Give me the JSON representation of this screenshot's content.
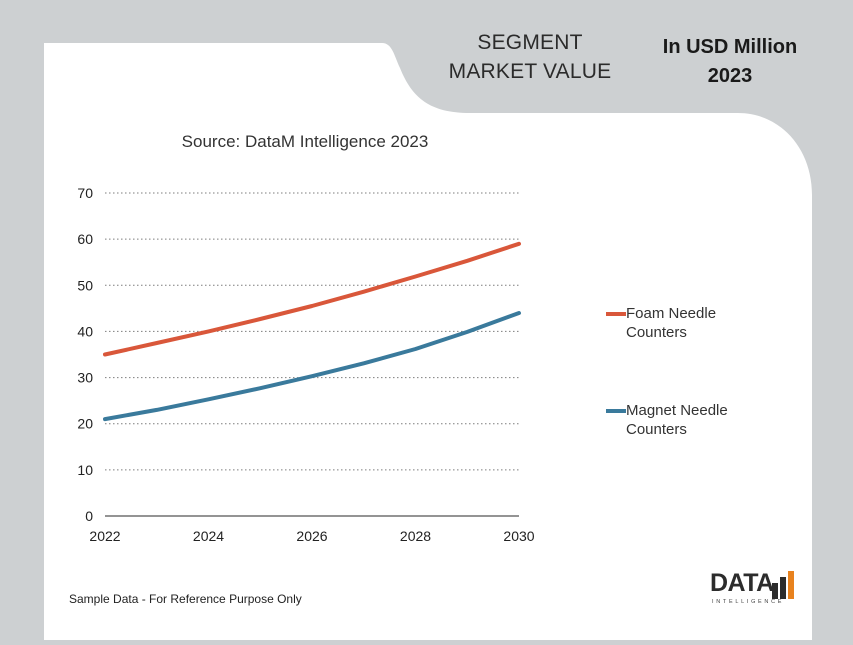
{
  "header": {
    "segment_line1": "SEGMENT",
    "segment_line2": "MARKET VALUE",
    "usd_line1": "In USD Million",
    "usd_line2": "2023"
  },
  "source": "Source: DataM Intelligence 2023",
  "footnote": "Sample Data - For Reference Purpose Only",
  "logo": {
    "word": "DATA",
    "sub": "INTELLIGENCE"
  },
  "colors": {
    "foam": "#d9573a",
    "magnet": "#3a7a9c",
    "background": "#cdd0d2",
    "card": "#ffffff",
    "logo_accent": "#e8821e"
  },
  "chart_data": {
    "type": "line",
    "x": [
      2022,
      2023,
      2024,
      2025,
      2026,
      2027,
      2028,
      2029,
      2030
    ],
    "series": [
      {
        "name": "Foam Needle Counters",
        "values": [
          35,
          37.5,
          40,
          42.7,
          45.5,
          48.6,
          51.9,
          55.3,
          59
        ]
      },
      {
        "name": "Magnet Needle Counters",
        "values": [
          21,
          23,
          25.3,
          27.7,
          30.3,
          33.1,
          36.2,
          39.9,
          44
        ]
      }
    ],
    "xticks": [
      "2022",
      "2024",
      "2026",
      "2028",
      "2030"
    ],
    "yticks": [
      "0",
      "10",
      "20",
      "30",
      "40",
      "50",
      "60",
      "70"
    ],
    "xlim": [
      2022,
      2030
    ],
    "ylim": [
      0,
      70
    ],
    "grid": true,
    "legend_position": "right",
    "title": "",
    "xlabel": "",
    "ylabel": ""
  },
  "legend": [
    {
      "line1": "Foam Needle",
      "line2": "Counters"
    },
    {
      "line1": "Magnet Needle",
      "line2": "Counters"
    }
  ]
}
